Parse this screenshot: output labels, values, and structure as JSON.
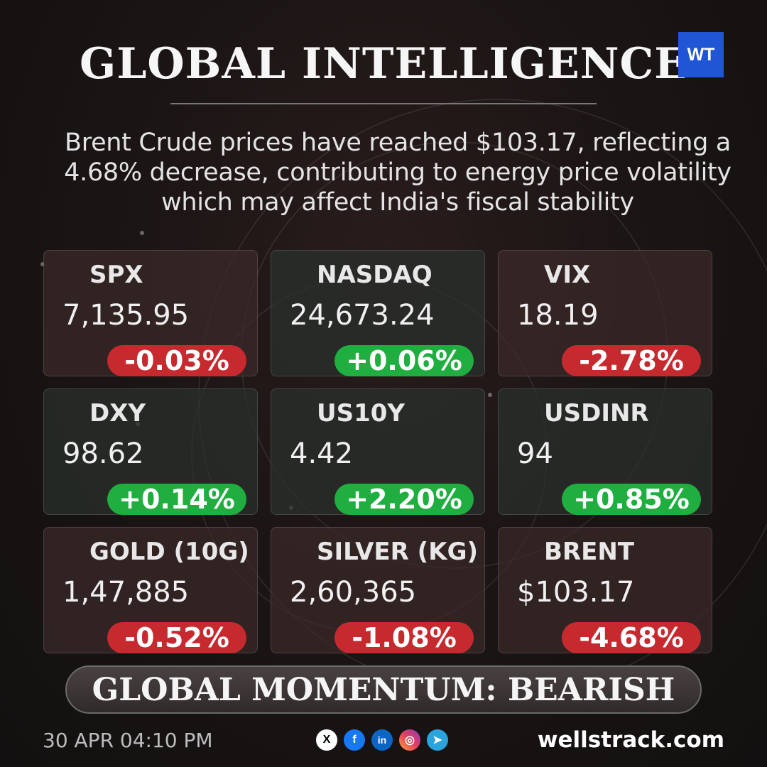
{
  "header": {
    "title": "GLOBAL INTELLIGENCE",
    "logo_text": "WT",
    "headline": "Brent Crude prices have reached $103.17, reflecting a 4.68% decrease, contributing to energy price volatility which may affect India's fiscal stability"
  },
  "colors": {
    "negative": "#c62a2f",
    "positive": "#1fae3f",
    "logo": "#1f56d6"
  },
  "cards": [
    {
      "name": "SPX",
      "value": "7,135.95",
      "change": "-0.03%",
      "direction": "negative"
    },
    {
      "name": "NASDAQ",
      "value": "24,673.24",
      "change": "+0.06%",
      "direction": "positive"
    },
    {
      "name": "VIX",
      "value": "18.19",
      "change": "-2.78%",
      "direction": "negative"
    },
    {
      "name": "DXY",
      "value": "98.62",
      "change": "+0.14%",
      "direction": "positive"
    },
    {
      "name": "US10Y",
      "value": "4.42",
      "change": "+2.20%",
      "direction": "positive"
    },
    {
      "name": "USDINR",
      "value": "94",
      "change": "+0.85%",
      "direction": "positive"
    },
    {
      "name": "GOLD (10G)",
      "value": "1,47,885",
      "change": "-0.52%",
      "direction": "negative"
    },
    {
      "name": "SILVER (KG)",
      "value": "2,60,365",
      "change": "-1.08%",
      "direction": "negative"
    },
    {
      "name": "BRENT",
      "value": "$103.17",
      "change": "-4.68%",
      "direction": "negative"
    }
  ],
  "momentum": {
    "label": "GLOBAL MOMENTUM: BEARISH"
  },
  "footer": {
    "timestamp": "30 APR 04:10 PM",
    "socials": [
      {
        "icon": "x-icon",
        "glyph": "X"
      },
      {
        "icon": "facebook-icon",
        "glyph": "f"
      },
      {
        "icon": "linkedin-icon",
        "glyph": "in"
      },
      {
        "icon": "instagram-icon",
        "glyph": "◎"
      },
      {
        "icon": "telegram-icon",
        "glyph": "➤"
      }
    ],
    "website": "wellstrack.com"
  }
}
